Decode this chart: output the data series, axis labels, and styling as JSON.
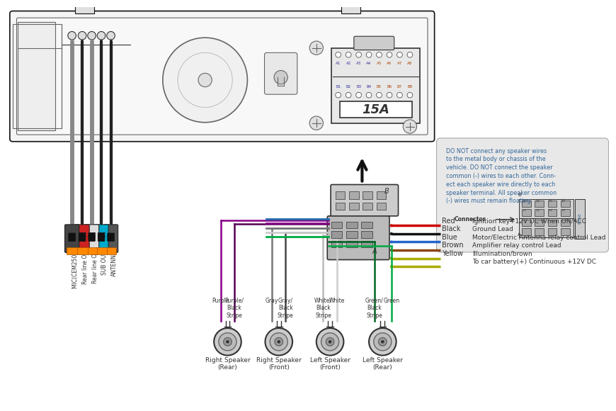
{
  "bg_color": "#ffffff",
  "warning_text": "DO NOT connect any speaker wires\nto the metal body or chassis of the\nvehicle. DO NOT connect the speaker\ncommon (-) wires to each other. Conn-\nect each speaker wire directly to each\nspeaker terminal. All speaker common\n(-) wires must remain floating.",
  "connector_label": "Connector",
  "fuse_label": "FUSE",
  "wire_entries": [
    {
      "color_name": "Red",
      "wire_color": "#cc0000",
      "desc": "Ignition key+12V DC When ON/ACC"
    },
    {
      "color_name": "Black",
      "wire_color": "#111111",
      "desc": "Ground Lead"
    },
    {
      "color_name": "Blue",
      "wire_color": "#2266cc",
      "desc": "Motor/Electric Antenna relay control Lead"
    },
    {
      "color_name": "Brown",
      "wire_color": "#8B4513",
      "desc": "Amplifier relay control Lead"
    },
    {
      "color_name": "Yellow",
      "wire_color": "#aaaa00",
      "desc": "Illumination/brown"
    },
    {
      "color_name": "",
      "wire_color": "#aaaa00",
      "desc": "To car battery(+) Continuous +12V DC"
    }
  ],
  "speaker_wire_colors": [
    "#880088",
    "#880088",
    "#888888",
    "#888888",
    "#cccccc",
    "#cccccc",
    "#00aa44",
    "#00aa44"
  ],
  "speaker_wire_styles": [
    "solid",
    "dashed",
    "solid",
    "dashed",
    "solid",
    "dashed",
    "solid",
    "dashed"
  ],
  "speaker_top_labels": [
    "Purple",
    "Purple/\nBlack\nStripe",
    "Gray",
    "Gray/\nBlack\nStripe",
    "White/\nBlack\nStripe",
    "White",
    "Green/\nBlack\nStripe",
    "Green"
  ],
  "speaker_bottom_labels": [
    "Right Speaker\n(Rear)",
    "Right Speaker\n(Front)",
    "Left Speaker\n(Front)",
    "Left Speaker\n(Rear)"
  ],
  "left_connector_labels": [
    "MIC(CEM250 only)",
    "Rear line Out R",
    "Rear line Out L",
    "SUB OUT",
    "ANTENNA"
  ],
  "connector_row_a": [
    "A1",
    "A2",
    "A3",
    "A4",
    "A5",
    "A6",
    "A7",
    "A8"
  ],
  "connector_row_b": [
    "B1",
    "B2",
    "B3",
    "B4",
    "B5",
    "B6",
    "B7",
    "B8"
  ],
  "unit_label": "15A"
}
